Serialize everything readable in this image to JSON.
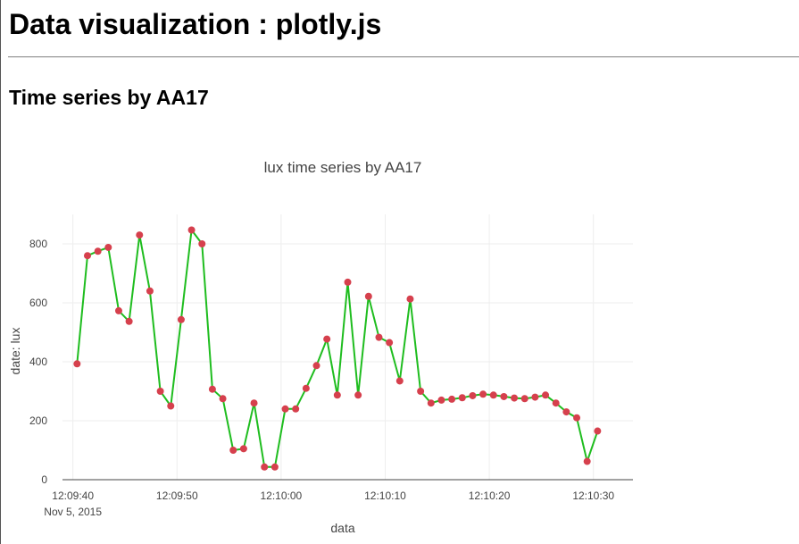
{
  "page": {
    "title": "Data visualization : plotly.js",
    "subtitle": "Time series by AA17"
  },
  "chart_data": {
    "type": "line",
    "title": "lux time series by AA17",
    "xlabel": "data",
    "ylabel": "date: lux",
    "x_tick_labels": [
      "12:09:40",
      "12:09:50",
      "12:10:00",
      "12:10:10",
      "12:10:20",
      "12:10:30"
    ],
    "x_tick_sublabel": "Nov 5, 2015",
    "x_tick_seconds": [
      40,
      50,
      60,
      70,
      80,
      90
    ],
    "xlim_seconds": [
      39,
      93.8
    ],
    "y_ticks": [
      0,
      200,
      400,
      600,
      800
    ],
    "ylim": [
      0,
      900
    ],
    "line_color": "#1fbd1f",
    "marker_color": "#d6404d",
    "grid": true,
    "series": [
      {
        "x_seconds": [
          40.4,
          41.4,
          42.4,
          43.4,
          44.4,
          45.4,
          46.4,
          47.4,
          48.4,
          49.4,
          50.4,
          51.4,
          52.4,
          53.4,
          54.4,
          55.4,
          56.4,
          57.4,
          58.4,
          59.4,
          60.4,
          61.4,
          62.4,
          63.4,
          64.4,
          65.4,
          66.4,
          67.4,
          68.4,
          69.4,
          70.4,
          71.4,
          72.4,
          73.4,
          74.4,
          75.4,
          76.4,
          77.4,
          78.4,
          79.4,
          80.4,
          81.4,
          82.4,
          83.4,
          84.4,
          85.4,
          86.4,
          87.4,
          88.4,
          89.4,
          90.4
        ],
        "y": [
          393,
          760,
          775,
          788,
          573,
          537,
          830,
          640,
          300,
          250,
          543,
          847,
          800,
          307,
          275,
          100,
          105,
          260,
          43,
          43,
          240,
          240,
          310,
          387,
          477,
          287,
          670,
          287,
          622,
          483,
          465,
          335,
          613,
          300,
          260,
          270,
          273,
          278,
          285,
          290,
          287,
          282,
          277,
          275,
          280,
          287,
          260,
          230,
          210,
          62,
          165
        ]
      }
    ]
  }
}
